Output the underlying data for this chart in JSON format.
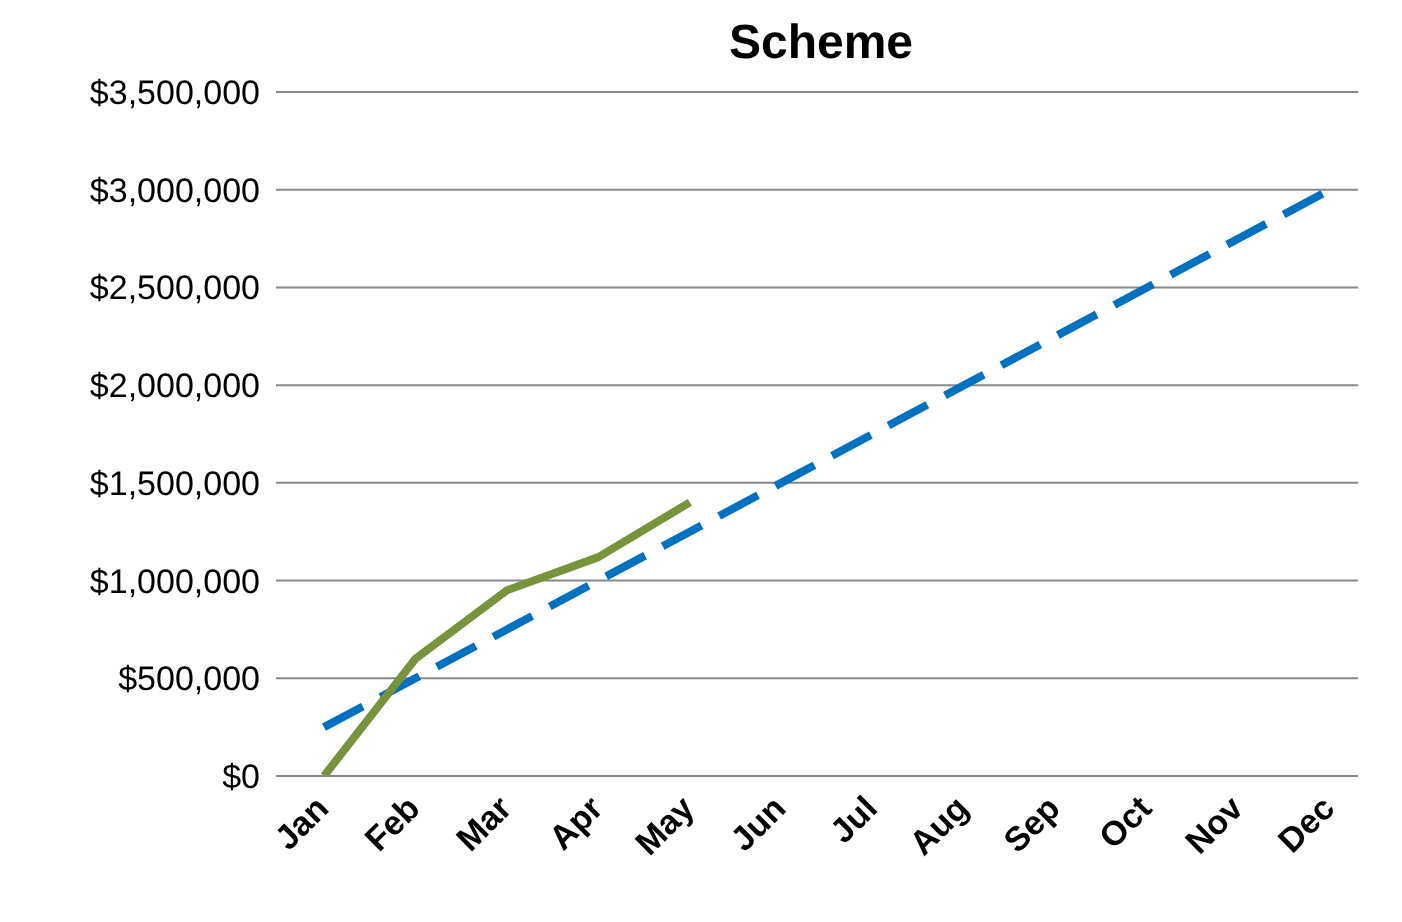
{
  "chart_data": {
    "type": "line",
    "title": "Scheme",
    "categories": [
      "Jan",
      "Feb",
      "Mar",
      "Apr",
      "May",
      "Jun",
      "Jul",
      "Aug",
      "Sep",
      "Oct",
      "Nov",
      "Dec"
    ],
    "series": [
      {
        "color": "#0070c0",
        "line_style": "dashed",
        "values": [
          250000,
          500000,
          750000,
          1000000,
          1250000,
          1500000,
          1750000,
          2000000,
          2250000,
          2500000,
          2750000,
          3000000
        ]
      },
      {
        "color": "#77933c",
        "line_style": "solid",
        "values": [
          0,
          600000,
          950000,
          1120000,
          1400000,
          null,
          null,
          null,
          null,
          null,
          null,
          null
        ]
      }
    ],
    "ylim": [
      0,
      3500000
    ],
    "yticks": [
      {
        "value": 0,
        "label": "$0"
      },
      {
        "value": 500000,
        "label": "$500,000"
      },
      {
        "value": 1000000,
        "label": "$1,000,000"
      },
      {
        "value": 1500000,
        "label": "$1,500,000"
      },
      {
        "value": 2000000,
        "label": "$2,000,000"
      },
      {
        "value": 2500000,
        "label": "$2,500,000"
      },
      {
        "value": 3000000,
        "label": "$3,000,000"
      },
      {
        "value": 3500000,
        "label": "$3,500,000"
      }
    ],
    "grid": "y",
    "legend": false,
    "marker": "none"
  }
}
